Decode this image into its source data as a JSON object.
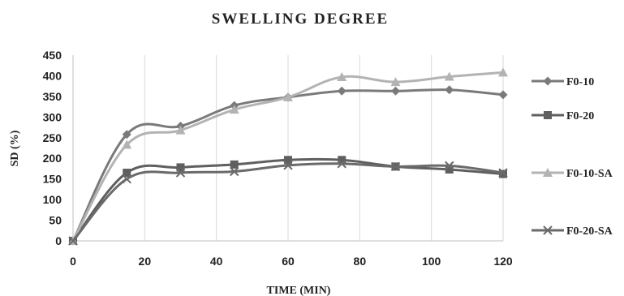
{
  "chart_data": {
    "type": "line",
    "title": "SWELLING DEGREE",
    "xlabel": "TIME (MIN)",
    "ylabel": "SD (%)",
    "xlim": [
      0,
      120
    ],
    "ylim": [
      0,
      450
    ],
    "x_ticks": [
      "0",
      "20",
      "40",
      "60",
      "80",
      "100",
      "120"
    ],
    "y_ticks": [
      "0",
      "50",
      "100",
      "150",
      "200",
      "250",
      "300",
      "350",
      "400",
      "450"
    ],
    "grid": "vertical",
    "legend_position": "right",
    "x": [
      0,
      15,
      30,
      45,
      60,
      75,
      90,
      105,
      120
    ],
    "series": [
      {
        "name": "F0-10",
        "marker": "diamond",
        "color": "#7a7a7a",
        "values": [
          0,
          258,
          278,
          328,
          348,
          363,
          363,
          366,
          354
        ]
      },
      {
        "name": "F0-20",
        "marker": "square",
        "color": "#5f5f5f",
        "values": [
          0,
          165,
          178,
          185,
          196,
          196,
          180,
          173,
          162
        ]
      },
      {
        "name": "F0-10-SA",
        "marker": "triangle",
        "color": "#b3b3b3",
        "values": [
          0,
          233,
          268,
          318,
          348,
          397,
          385,
          398,
          408
        ]
      },
      {
        "name": "F0-20-SA",
        "marker": "cross",
        "color": "#6a6a6a",
        "values": [
          0,
          150,
          165,
          168,
          183,
          187,
          180,
          182,
          165
        ]
      }
    ]
  }
}
